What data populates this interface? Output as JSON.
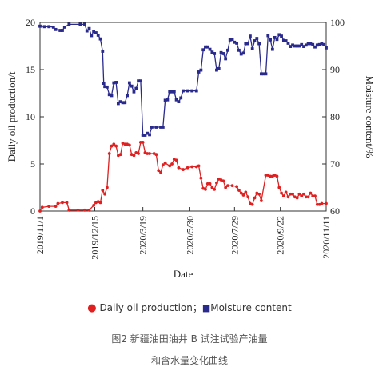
{
  "chart_data": {
    "type": "line",
    "xlabel": "Date",
    "ylabel_left": "Daily oil production/t",
    "ylabel_right": "Moisture content/%",
    "x_ticks": [
      "2019/11/1",
      "2019/12/15",
      "2020/3/19",
      "2020/5/30",
      "2020/7/29",
      "2020/9/22",
      "2020/11/11"
    ],
    "ylim_left": [
      0,
      20
    ],
    "ylim_right": [
      60,
      100
    ],
    "yticks_left": [
      "0",
      "5",
      "10",
      "15",
      "20"
    ],
    "yticks_right": [
      "60",
      "70",
      "80",
      "90",
      "100"
    ],
    "grid": false,
    "legend_position": "bottom",
    "series": [
      {
        "name": "Daily oil production",
        "axis": "left",
        "color": "#e02020",
        "points": [
          [
            0.0,
            0.0
          ],
          [
            0.01,
            0.4
          ],
          [
            0.04,
            0.5
          ],
          [
            0.07,
            0.5
          ],
          [
            0.08,
            0.8
          ],
          [
            0.1,
            0.9
          ],
          [
            0.12,
            0.9
          ],
          [
            0.13,
            0.1
          ],
          [
            0.17,
            0.1
          ],
          [
            0.2,
            0.1
          ],
          [
            0.22,
            0.1
          ],
          [
            0.24,
            0.6
          ],
          [
            0.25,
            0.9
          ],
          [
            0.26,
            1.0
          ],
          [
            0.27,
            0.9
          ],
          [
            0.28,
            2.2
          ],
          [
            0.29,
            1.8
          ],
          [
            0.3,
            2.5
          ],
          [
            0.31,
            6.1
          ],
          [
            0.32,
            6.9
          ],
          [
            0.33,
            7.1
          ],
          [
            0.34,
            6.9
          ],
          [
            0.35,
            5.9
          ],
          [
            0.36,
            6.0
          ],
          [
            0.37,
            7.2
          ],
          [
            0.38,
            7.1
          ],
          [
            0.39,
            7.1
          ],
          [
            0.4,
            7.0
          ],
          [
            0.41,
            6.0
          ],
          [
            0.42,
            5.9
          ],
          [
            0.43,
            6.2
          ],
          [
            0.44,
            6.1
          ],
          [
            0.45,
            7.3
          ],
          [
            0.46,
            7.3
          ],
          [
            0.47,
            6.2
          ],
          [
            0.48,
            6.1
          ],
          [
            0.49,
            6.1
          ],
          [
            0.51,
            6.1
          ],
          [
            0.52,
            6.0
          ],
          [
            0.53,
            4.3
          ],
          [
            0.54,
            4.1
          ],
          [
            0.55,
            4.9
          ],
          [
            0.56,
            5.1
          ],
          [
            0.58,
            4.8
          ],
          [
            0.59,
            5.0
          ],
          [
            0.6,
            5.5
          ],
          [
            0.61,
            5.4
          ],
          [
            0.62,
            4.6
          ],
          [
            0.64,
            4.4
          ],
          [
            0.66,
            4.6
          ],
          [
            0.68,
            4.7
          ],
          [
            0.7,
            4.7
          ],
          [
            0.71,
            4.8
          ],
          [
            0.72,
            3.5
          ],
          [
            0.73,
            2.4
          ],
          [
            0.74,
            2.3
          ],
          [
            0.75,
            2.9
          ],
          [
            0.76,
            2.9
          ],
          [
            0.77,
            2.5
          ],
          [
            0.78,
            2.3
          ],
          [
            0.79,
            3.0
          ],
          [
            0.8,
            3.4
          ],
          [
            0.81,
            3.3
          ],
          [
            0.82,
            3.2
          ],
          [
            0.83,
            2.5
          ],
          [
            0.84,
            2.7
          ],
          [
            0.86,
            2.7
          ],
          [
            0.88,
            2.6
          ],
          [
            0.89,
            2.2
          ],
          [
            0.9,
            1.9
          ],
          [
            0.91,
            1.7
          ],
          [
            0.92,
            2.0
          ],
          [
            0.93,
            1.5
          ],
          [
            0.94,
            0.8
          ],
          [
            0.95,
            0.7
          ],
          [
            0.96,
            1.4
          ],
          [
            0.97,
            1.9
          ],
          [
            0.98,
            1.8
          ],
          [
            0.99,
            1.1
          ],
          [
            1.01,
            3.8
          ],
          [
            1.02,
            3.8
          ],
          [
            1.03,
            3.7
          ],
          [
            1.04,
            3.7
          ],
          [
            1.05,
            3.8
          ],
          [
            1.06,
            3.7
          ],
          [
            1.07,
            2.5
          ],
          [
            1.08,
            1.9
          ],
          [
            1.09,
            1.6
          ],
          [
            1.1,
            2.0
          ],
          [
            1.11,
            1.5
          ],
          [
            1.12,
            1.8
          ],
          [
            1.13,
            1.8
          ],
          [
            1.14,
            1.5
          ],
          [
            1.15,
            1.4
          ],
          [
            1.16,
            1.8
          ],
          [
            1.17,
            1.6
          ],
          [
            1.18,
            1.8
          ],
          [
            1.19,
            1.5
          ],
          [
            1.2,
            1.5
          ],
          [
            1.21,
            1.9
          ],
          [
            1.22,
            1.6
          ],
          [
            1.23,
            1.6
          ],
          [
            1.24,
            0.7
          ],
          [
            1.25,
            0.7
          ],
          [
            1.26,
            0.8
          ],
          [
            1.28,
            0.8
          ]
        ]
      },
      {
        "name": "Moisture content",
        "axis": "right",
        "color": "#2a2a8c",
        "points": [
          [
            0.0,
            99.2
          ],
          [
            0.02,
            99.1
          ],
          [
            0.04,
            99.1
          ],
          [
            0.06,
            99.0
          ],
          [
            0.07,
            98.5
          ],
          [
            0.09,
            98.3
          ],
          [
            0.1,
            98.3
          ],
          [
            0.11,
            99.0
          ],
          [
            0.13,
            99.6
          ],
          [
            0.18,
            99.6
          ],
          [
            0.2,
            99.6
          ],
          [
            0.21,
            98.2
          ],
          [
            0.22,
            98.7
          ],
          [
            0.23,
            97.2
          ],
          [
            0.24,
            98.1
          ],
          [
            0.25,
            97.8
          ],
          [
            0.26,
            97.3
          ],
          [
            0.27,
            96.5
          ],
          [
            0.28,
            93.9
          ],
          [
            0.285,
            87.1
          ],
          [
            0.29,
            86.4
          ],
          [
            0.3,
            86.3
          ],
          [
            0.31,
            84.7
          ],
          [
            0.32,
            84.5
          ],
          [
            0.33,
            87.2
          ],
          [
            0.34,
            87.3
          ],
          [
            0.35,
            82.8
          ],
          [
            0.36,
            83.2
          ],
          [
            0.37,
            83.0
          ],
          [
            0.38,
            83.0
          ],
          [
            0.39,
            84.5
          ],
          [
            0.4,
            87.2
          ],
          [
            0.41,
            86.5
          ],
          [
            0.42,
            85.3
          ],
          [
            0.43,
            86.0
          ],
          [
            0.44,
            87.6
          ],
          [
            0.45,
            87.6
          ],
          [
            0.46,
            76.1
          ],
          [
            0.47,
            76.1
          ],
          [
            0.48,
            76.5
          ],
          [
            0.49,
            76.2
          ],
          [
            0.5,
            77.8
          ],
          [
            0.52,
            77.8
          ],
          [
            0.54,
            77.8
          ],
          [
            0.55,
            77.8
          ],
          [
            0.56,
            83.5
          ],
          [
            0.57,
            83.6
          ],
          [
            0.58,
            85.3
          ],
          [
            0.59,
            85.3
          ],
          [
            0.6,
            85.3
          ],
          [
            0.61,
            83.6
          ],
          [
            0.62,
            83.2
          ],
          [
            0.63,
            84.0
          ],
          [
            0.64,
            85.5
          ],
          [
            0.66,
            85.5
          ],
          [
            0.68,
            85.5
          ],
          [
            0.7,
            85.5
          ],
          [
            0.71,
            89.5
          ],
          [
            0.72,
            89.9
          ],
          [
            0.73,
            94.2
          ],
          [
            0.74,
            94.8
          ],
          [
            0.75,
            94.8
          ],
          [
            0.76,
            94.3
          ],
          [
            0.77,
            93.7
          ],
          [
            0.78,
            93.4
          ],
          [
            0.79,
            89.9
          ],
          [
            0.8,
            90.2
          ],
          [
            0.81,
            93.6
          ],
          [
            0.82,
            93.4
          ],
          [
            0.83,
            92.3
          ],
          [
            0.84,
            94.1
          ],
          [
            0.85,
            96.3
          ],
          [
            0.86,
            96.4
          ],
          [
            0.87,
            95.8
          ],
          [
            0.88,
            95.6
          ],
          [
            0.89,
            94.1
          ],
          [
            0.9,
            93.3
          ],
          [
            0.91,
            93.5
          ],
          [
            0.92,
            95.5
          ],
          [
            0.93,
            95.5
          ],
          [
            0.94,
            97.1
          ],
          [
            0.95,
            94.4
          ],
          [
            0.96,
            96.1
          ],
          [
            0.97,
            96.6
          ],
          [
            0.98,
            95.5
          ],
          [
            0.99,
            89.1
          ],
          [
            1.0,
            89.1
          ],
          [
            1.01,
            89.1
          ],
          [
            1.02,
            97.2
          ],
          [
            1.03,
            96.3
          ],
          [
            1.04,
            94.3
          ],
          [
            1.05,
            96.8
          ],
          [
            1.06,
            96.4
          ],
          [
            1.07,
            97.4
          ],
          [
            1.08,
            97.1
          ],
          [
            1.09,
            96.2
          ],
          [
            1.1,
            96.1
          ],
          [
            1.11,
            95.6
          ],
          [
            1.12,
            94.9
          ],
          [
            1.13,
            95.2
          ],
          [
            1.14,
            95.0
          ],
          [
            1.15,
            95.0
          ],
          [
            1.16,
            95.0
          ],
          [
            1.17,
            95.3
          ],
          [
            1.18,
            94.9
          ],
          [
            1.19,
            95.2
          ],
          [
            1.2,
            95.5
          ],
          [
            1.21,
            95.5
          ],
          [
            1.22,
            95.3
          ],
          [
            1.23,
            94.8
          ],
          [
            1.24,
            95.2
          ],
          [
            1.25,
            95.3
          ],
          [
            1.26,
            95.5
          ],
          [
            1.27,
            95.3
          ],
          [
            1.28,
            94.6
          ]
        ]
      }
    ]
  },
  "legend": {
    "oil_marker": "●",
    "oil_text": " Daily oil production；",
    "moisture_marker": "■",
    "moisture_text": "Moisture content"
  },
  "caption": {
    "line1": "图2 新疆油田油井 B 试注试验产油量",
    "line2": "和含水量变化曲线"
  }
}
